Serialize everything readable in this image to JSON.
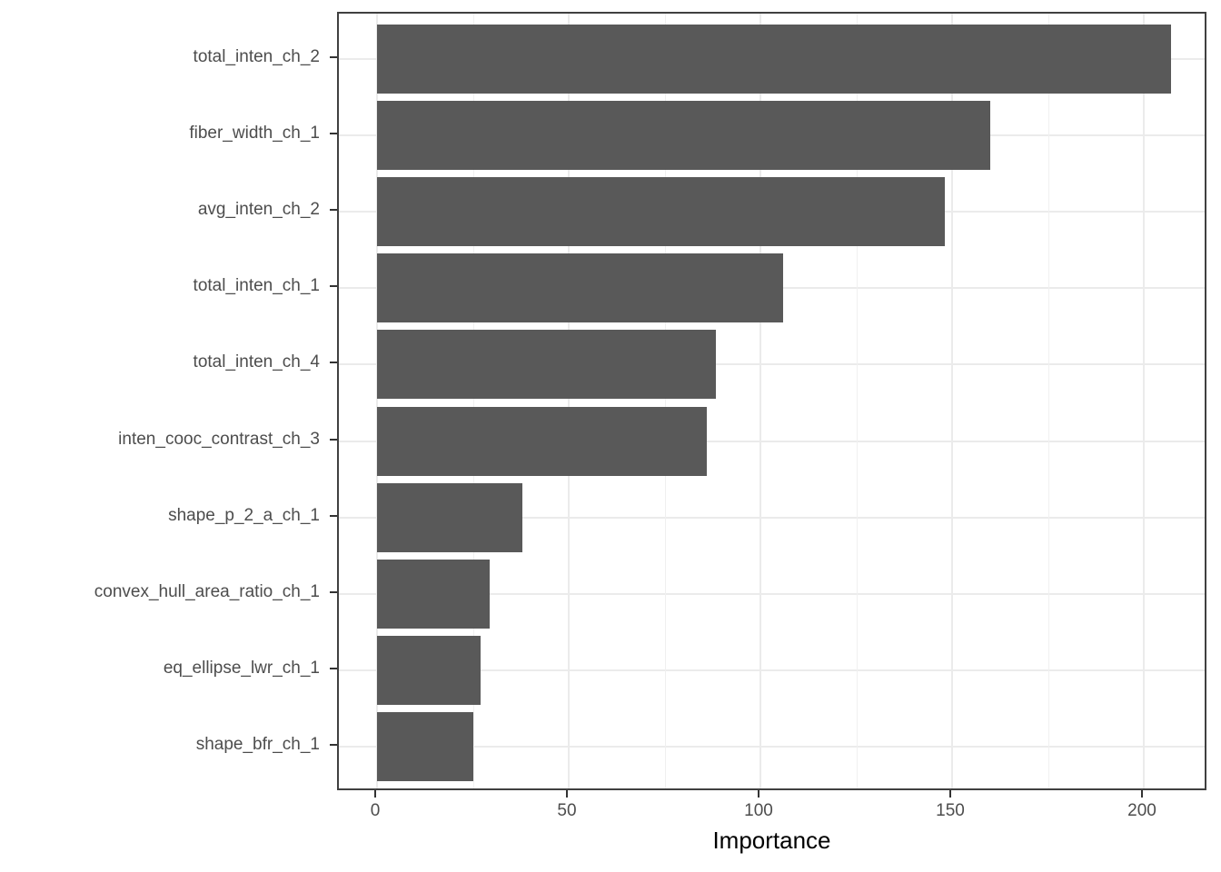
{
  "chart_data": {
    "type": "bar",
    "orientation": "horizontal",
    "title": "",
    "xlabel": "Importance",
    "ylabel": "",
    "categories": [
      "total_inten_ch_2",
      "fiber_width_ch_1",
      "avg_inten_ch_2",
      "total_inten_ch_1",
      "total_inten_ch_4",
      "inten_cooc_contrast_ch_3",
      "shape_p_2_a_ch_1",
      "convex_hull_area_ratio_ch_1",
      "eq_ellipse_lwr_ch_1",
      "shape_bfr_ch_1"
    ],
    "values": [
      207,
      160,
      148,
      106,
      88.5,
      86,
      38,
      29.5,
      27,
      25
    ],
    "xlim": [
      0,
      217
    ],
    "x_major_ticks": [
      0,
      50,
      100,
      150,
      200
    ],
    "x_minor_gridlines": [
      25,
      75,
      125,
      175
    ],
    "grid": true,
    "legend": false,
    "bar_color": "#595959",
    "panel_border_color": "#404040",
    "gridline_color": "#ebebeb",
    "tick_color": "#333333",
    "axis_text_color": "#4d4d4d",
    "axis_title_color": "#000000"
  }
}
